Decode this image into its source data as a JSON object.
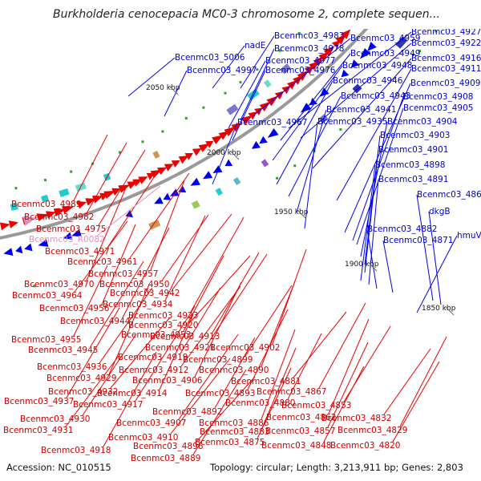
{
  "title": "Burkholderia cenocepacia MC0-3 chromosome 2, complete sequen...",
  "footer": {
    "accession": "Accession: NC_010515",
    "topology": "Topology: circular; Length: 3,213,911 bp; Genes: 2,803"
  },
  "scale_labels": [
    "2050 kbp",
    "2000 kbp",
    "1950 kbp",
    "1900 kbp",
    "1850 kbp"
  ],
  "blue_labels": [
    "Bcenmc03_4983",
    "Bcenmc03_4959",
    "Bcenmc03_4927",
    "Bcenmc03_4922",
    "nadE",
    "Bcenmc03_4978",
    "Bcenmc03_4949",
    "Bcenmc03_4916",
    "Bcenmc03_5006",
    "Bcenmc03_4977",
    "Bcenmc03_4948",
    "Bcenmc03_4911",
    "Bcenmc03_4997",
    "Bcenmc03_4976",
    "Bcenmc03_4946",
    "Bcenmc03_4909",
    "Bcenmc03_4943",
    "Bcenmc03_4908",
    "Bcenmc03_4941",
    "Bcenmc03_4905",
    "Bcenmc03_4967",
    "Bcenmc03_4935",
    "Bcenmc03_4904",
    "Bcenmc03_4903",
    "Bcenmc03_4901",
    "Bcenmc03_4898",
    "Bcenmc03_4891",
    "Bcenmc03_4868",
    "dkgB",
    "Bcenmc03_4882",
    "Bcenmc03_4871",
    "hmuV"
  ],
  "red_labels": [
    "Bcenmc03_4989",
    "Bcenmc03_4982",
    "Bcenmc03_4975",
    "Bcenmc03_4971",
    "Bcenmc03_4961",
    "Bcenmc03_4957",
    "Bcenmc03_4970",
    "Bcenmc03_4950",
    "Bcenmc03_4964",
    "Bcenmc03_4942",
    "Bcenmc03_4956",
    "Bcenmc03_4934",
    "Bcenmc03_4944",
    "Bcenmc03_4923",
    "Bcenmc03_4920",
    "Bcenmc03_4955",
    "Bcenmc03_4953",
    "Bcenmc03_4913",
    "Bcenmc03_4945",
    "Bcenmc03_4921",
    "Bcenmc03_4902",
    "Bcenmc03_4919",
    "Bcenmc03_4899",
    "Bcenmc03_4936",
    "Bcenmc03_4912",
    "Bcenmc03_4890",
    "Bcenmc03_4929",
    "Bcenmc03_4906",
    "Bcenmc03_4881",
    "Bcenmc03_4932",
    "Bcenmc03_4914",
    "Bcenmc03_4893",
    "Bcenmc03_4867",
    "Bcenmc03_4937",
    "Bcenmc03_4917",
    "Bcenmc03_4880",
    "Bcenmc03_4892",
    "Bcenmc03_4853",
    "Bcenmc03_4930",
    "Bcenmc03_4907",
    "Bcenmc03_4886",
    "Bcenmc03_4862",
    "Bcenmc03_4832",
    "Bcenmc03_4931",
    "Bcenmc03_4910",
    "Bcenmc03_4883",
    "Bcenmc03_4857",
    "Bcenmc03_4829",
    "Bcenmc03_4918",
    "Bcenmc03_4896",
    "Bcenmc03_4875",
    "Bcenmc03_4848",
    "Bcenmc03_4820",
    "Bcenmc03_4889"
  ],
  "pink_labels": [
    "Bcenmc03_R0082"
  ],
  "colors": {
    "forward_genes": "#0000ee",
    "reverse_genes": "#ee0000",
    "rna_gene": "#e090c0",
    "backbone": "#999999",
    "gc_marks": "#22aa22"
  }
}
